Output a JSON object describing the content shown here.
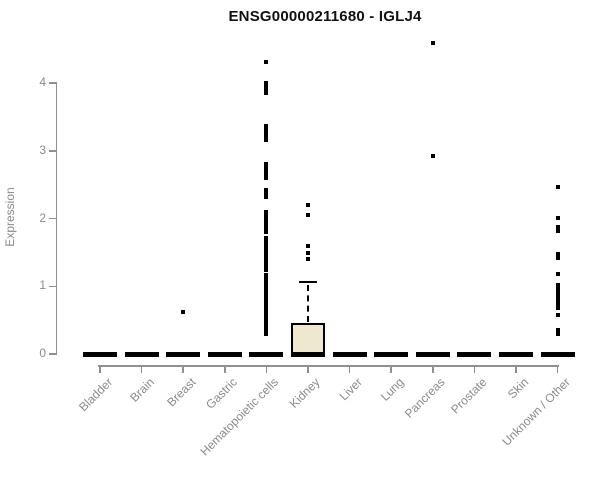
{
  "chart_data": {
    "type": "boxplot",
    "title": "ENSG00000211680 - IGLJ4",
    "ylabel": "Expression",
    "xlabel": "",
    "ylim": [
      0,
      4.65
    ],
    "yticks": [
      0,
      1,
      2,
      3,
      4
    ],
    "grid": false,
    "legend": "none",
    "categories": [
      "Bladder",
      "Brain",
      "Breast",
      "Gastric",
      "Hematopoietic cells",
      "Kidney",
      "Liver",
      "Lung",
      "Pancreas",
      "Prostate",
      "Skin",
      "Unknown / Other"
    ],
    "series": [
      {
        "name": "Bladder",
        "median": 0,
        "q1": 0,
        "q3": 0,
        "whisker_low": 0,
        "whisker_high": 0,
        "outliers": []
      },
      {
        "name": "Brain",
        "median": 0,
        "q1": 0,
        "q3": 0,
        "whisker_low": 0,
        "whisker_high": 0,
        "outliers": []
      },
      {
        "name": "Breast",
        "median": 0,
        "q1": 0,
        "q3": 0,
        "whisker_low": 0,
        "whisker_high": 0,
        "outliers": [
          0.62
        ]
      },
      {
        "name": "Gastric",
        "median": 0,
        "q1": 0,
        "q3": 0,
        "whisker_low": 0,
        "whisker_high": 0,
        "outliers": []
      },
      {
        "name": "Hematopoietic cells",
        "median": 0,
        "q1": 0,
        "q3": 0,
        "whisker_low": 0,
        "whisker_high": 0,
        "outliers": [
          4.31,
          4.01,
          3.97,
          3.93,
          3.89,
          3.85,
          3.37,
          3.32,
          3.27,
          3.21,
          3.16,
          2.81,
          2.76,
          2.7,
          2.65,
          2.6,
          2.42,
          2.37,
          2.32,
          2.1,
          2.05,
          2.0,
          1.95,
          1.9,
          1.85,
          1.8,
          1.71,
          1.67,
          1.63,
          1.59,
          1.55,
          1.52,
          1.48,
          1.45,
          1.41,
          1.38,
          1.34,
          1.31,
          1.27,
          1.24,
          1.16,
          1.12,
          1.08,
          1.04,
          1.0,
          0.96,
          0.93,
          0.89,
          0.85,
          0.81,
          0.77,
          0.73,
          0.7,
          0.66,
          0.62,
          0.58,
          0.55,
          0.5,
          0.46,
          0.42,
          0.38,
          0.34,
          0.3
        ]
      },
      {
        "name": "Kidney",
        "median": 0,
        "q1": 0,
        "q3": 0.46,
        "whisker_low": 0,
        "whisker_high": 1.06,
        "outliers": [
          2.2,
          2.06,
          1.6,
          1.49,
          1.4
        ]
      },
      {
        "name": "Liver",
        "median": 0,
        "q1": 0,
        "q3": 0,
        "whisker_low": 0,
        "whisker_high": 0,
        "outliers": []
      },
      {
        "name": "Lung",
        "median": 0,
        "q1": 0,
        "q3": 0,
        "whisker_low": 0,
        "whisker_high": 0,
        "outliers": []
      },
      {
        "name": "Pancreas",
        "median": 0,
        "q1": 0,
        "q3": 0,
        "whisker_low": 0,
        "whisker_high": 0,
        "outliers": [
          4.59,
          2.93
        ]
      },
      {
        "name": "Prostate",
        "median": 0,
        "q1": 0,
        "q3": 0,
        "whisker_low": 0,
        "whisker_high": 0,
        "outliers": []
      },
      {
        "name": "Skin",
        "median": 0,
        "q1": 0,
        "q3": 0,
        "whisker_low": 0,
        "whisker_high": 0,
        "outliers": []
      },
      {
        "name": "Unknown / Other",
        "median": 0,
        "q1": 0,
        "q3": 0,
        "whisker_low": 0,
        "whisker_high": 0,
        "outliers": [
          2.47,
          2.01,
          1.87,
          1.82,
          1.47,
          1.42,
          1.18,
          1.02,
          0.97,
          0.92,
          0.86,
          0.8,
          0.74,
          0.68,
          0.58,
          0.36,
          0.3
        ]
      }
    ]
  },
  "colors": {
    "box_fill": "#EFE8D0",
    "box_border": "#000000",
    "point": "#000000",
    "axis": "#8f8f8f",
    "axis_text": "#8a8a8a",
    "title_text": "#111111"
  }
}
